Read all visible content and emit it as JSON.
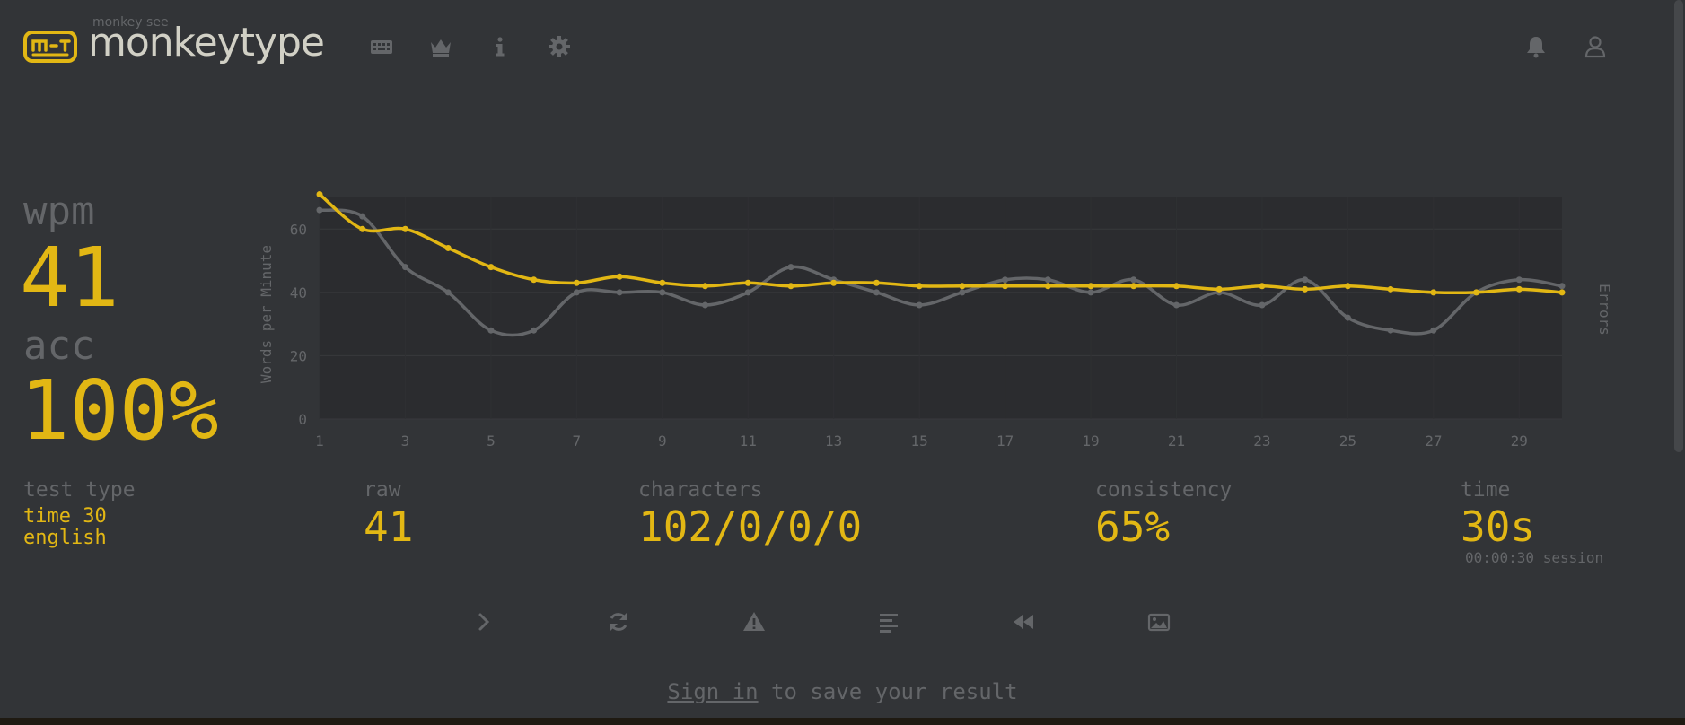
{
  "header": {
    "brand_small": "monkey see",
    "brand": "monkeytype",
    "icons": [
      "keyboard-icon",
      "crown-icon",
      "info-icon",
      "gear-icon",
      "bell-icon",
      "user-icon"
    ]
  },
  "result": {
    "wpm_label": "wpm",
    "wpm": "41",
    "acc_label": "acc",
    "acc": "100%"
  },
  "stats": {
    "test_type_label": "test type",
    "test_type_line1": "time 30",
    "test_type_line2": "english",
    "raw_label": "raw",
    "raw": "41",
    "characters_label": "characters",
    "characters": "102/0/0/0",
    "consistency_label": "consistency",
    "consistency": "65%",
    "time_label": "time",
    "time": "30s",
    "session": "00:00:30 session"
  },
  "buttons": [
    "next-test",
    "restart",
    "report",
    "word-history",
    "replay",
    "screenshot"
  ],
  "footer": {
    "signin_link": "Sign in",
    "signin_rest": " to save your result"
  },
  "colors": {
    "accent": "#e2b714",
    "raw": "#646669",
    "bg": "#323437",
    "text": "#d1d0c5"
  },
  "chart_data": {
    "type": "line",
    "ylabel": "Words per Minute",
    "y2label": "Errors",
    "ylim": [
      0,
      70
    ],
    "yticks": [
      0,
      20,
      40,
      60
    ],
    "xticks": [
      1,
      3,
      5,
      7,
      9,
      11,
      13,
      15,
      17,
      19,
      21,
      23,
      25,
      27,
      29
    ],
    "x": [
      1,
      2,
      3,
      4,
      5,
      6,
      7,
      8,
      9,
      10,
      11,
      12,
      13,
      14,
      15,
      16,
      17,
      18,
      19,
      20,
      21,
      22,
      23,
      24,
      25,
      26,
      27,
      28,
      29,
      30
    ],
    "series": [
      {
        "name": "wpm",
        "color": "#e2b714",
        "values": [
          71,
          60,
          60,
          54,
          48,
          44,
          43,
          45,
          43,
          42,
          43,
          42,
          43,
          43,
          42,
          42,
          42,
          42,
          42,
          42,
          42,
          41,
          42,
          41,
          42,
          41,
          40,
          40,
          41,
          40
        ]
      },
      {
        "name": "raw",
        "color": "#646669",
        "values": [
          66,
          64,
          48,
          40,
          28,
          28,
          40,
          40,
          40,
          36,
          40,
          48,
          44,
          40,
          36,
          40,
          44,
          44,
          40,
          44,
          36,
          40,
          36,
          44,
          32,
          28,
          28,
          40,
          44,
          42
        ]
      }
    ]
  }
}
